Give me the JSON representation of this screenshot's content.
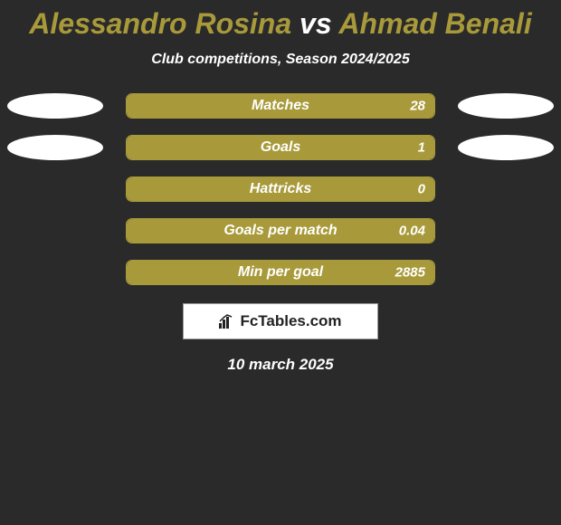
{
  "title": {
    "player1": "Alessandro Rosina",
    "vs": "vs",
    "player2": "Ahmad Benali",
    "player1_color": "#a89a3a",
    "vs_color": "#ffffff",
    "player2_color": "#a89a3a"
  },
  "subtitle": "Club competitions, Season 2024/2025",
  "background_color": "#2a2a2a",
  "bar_color": "#a89a3a",
  "ellipse_color": "#ffffff",
  "stats": [
    {
      "label": "Matches",
      "left_value": "",
      "right_value": "28",
      "fill_pct": 100,
      "show_left_ellipse": true,
      "show_right_ellipse": true
    },
    {
      "label": "Goals",
      "left_value": "",
      "right_value": "1",
      "fill_pct": 100,
      "show_left_ellipse": true,
      "show_right_ellipse": true
    },
    {
      "label": "Hattricks",
      "left_value": "",
      "right_value": "0",
      "fill_pct": 100,
      "show_left_ellipse": false,
      "show_right_ellipse": false
    },
    {
      "label": "Goals per match",
      "left_value": "",
      "right_value": "0.04",
      "fill_pct": 100,
      "show_left_ellipse": false,
      "show_right_ellipse": false
    },
    {
      "label": "Min per goal",
      "left_value": "",
      "right_value": "2885",
      "fill_pct": 100,
      "show_left_ellipse": false,
      "show_right_ellipse": false
    }
  ],
  "logo_text": "FcTables.com",
  "date": "10 march 2025"
}
